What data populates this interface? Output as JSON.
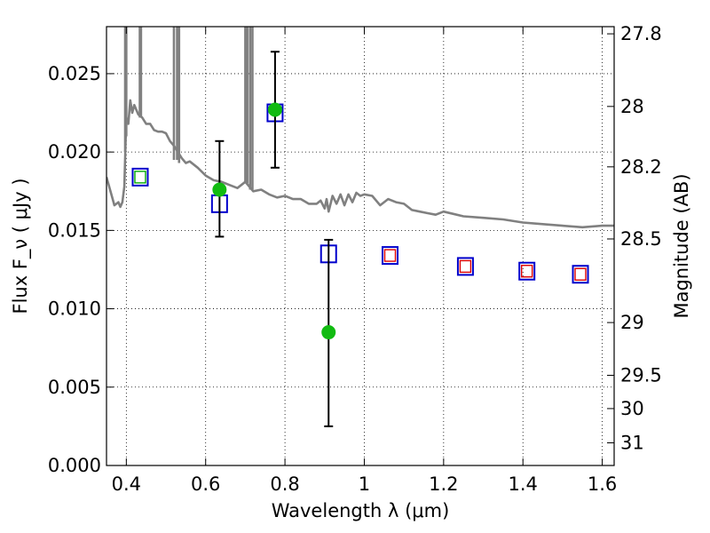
{
  "chart_data": {
    "type": "scatter",
    "xlabel": "Wavelength  λ (μm)",
    "ylabel": "Flux  F_ν  ( μJy )",
    "ylabel_right": "Magnitude (AB)",
    "xlim": [
      0.35,
      1.63
    ],
    "ylim": [
      0.0,
      0.028
    ],
    "grid": true,
    "x_ticks": [
      {
        "v": 0.4,
        "label": "0.4"
      },
      {
        "v": 0.6,
        "label": "0.6"
      },
      {
        "v": 0.8,
        "label": "0.8"
      },
      {
        "v": 1.0,
        "label": "1"
      },
      {
        "v": 1.2,
        "label": "1.2"
      },
      {
        "v": 1.4,
        "label": "1.4"
      },
      {
        "v": 1.6,
        "label": "1.6"
      }
    ],
    "y_ticks": [
      {
        "v": 0.0,
        "label": "0.000"
      },
      {
        "v": 0.005,
        "label": "0.005"
      },
      {
        "v": 0.01,
        "label": "0.010"
      },
      {
        "v": 0.015,
        "label": "0.015"
      },
      {
        "v": 0.02,
        "label": "0.020"
      },
      {
        "v": 0.025,
        "label": "0.025"
      }
    ],
    "right_ticks": [
      {
        "mag": 27.8,
        "label": "27.8"
      },
      {
        "mag": 28.0,
        "label": "28"
      },
      {
        "mag": 28.2,
        "label": "28.2"
      },
      {
        "mag": 28.5,
        "label": "28.5"
      },
      {
        "mag": 29.0,
        "label": "29"
      },
      {
        "mag": 29.5,
        "label": "29.5"
      },
      {
        "mag": 30.0,
        "label": "30"
      },
      {
        "mag": 31.0,
        "label": "31"
      }
    ],
    "series": [
      {
        "marker": "open-square",
        "color": "#0000cc",
        "x": [
          0.435,
          0.635,
          0.775,
          0.91,
          1.065,
          1.255,
          1.41,
          1.545
        ],
        "y": [
          0.0184,
          0.0167,
          0.0225,
          0.0135,
          0.0134,
          0.0127,
          0.0124,
          0.0122
        ]
      },
      {
        "marker": "small-open-square",
        "color": "#dd0000",
        "x": [
          1.065,
          1.255,
          1.41,
          1.545
        ],
        "y": [
          0.0134,
          0.0127,
          0.0124,
          0.0122
        ]
      },
      {
        "marker": "small-open-square",
        "color": "#00aa00",
        "x": [
          0.435
        ],
        "y": [
          0.0184
        ]
      },
      {
        "marker": "filled-circle",
        "color": "#11bb11",
        "x": [
          0.635,
          0.775,
          0.91
        ],
        "y": [
          0.0176,
          0.0227,
          0.0085
        ],
        "yerr_low": [
          0.0146,
          0.019,
          0.0025
        ],
        "yerr_high": [
          0.0207,
          0.0264,
          0.0144
        ]
      }
    ],
    "model_spectrum": {
      "color": "#808080",
      "x": [
        0.35,
        0.36,
        0.37,
        0.38,
        0.385,
        0.39,
        0.395,
        0.4,
        0.405,
        0.41,
        0.415,
        0.42,
        0.43,
        0.44,
        0.45,
        0.46,
        0.47,
        0.48,
        0.49,
        0.5,
        0.51,
        0.52,
        0.53,
        0.54,
        0.55,
        0.56,
        0.58,
        0.6,
        0.62,
        0.64,
        0.66,
        0.68,
        0.7,
        0.72,
        0.74,
        0.76,
        0.78,
        0.8,
        0.82,
        0.84,
        0.86,
        0.88,
        0.89,
        0.9,
        0.905,
        0.91,
        0.92,
        0.93,
        0.94,
        0.95,
        0.96,
        0.97,
        0.98,
        0.99,
        1.0,
        1.02,
        1.04,
        1.06,
        1.08,
        1.1,
        1.12,
        1.14,
        1.16,
        1.18,
        1.2,
        1.25,
        1.3,
        1.35,
        1.4,
        1.45,
        1.5,
        1.55,
        1.6,
        1.63
      ],
      "y": [
        0.0184,
        0.0175,
        0.0166,
        0.0168,
        0.0165,
        0.0168,
        0.0178,
        0.0222,
        0.0218,
        0.0233,
        0.0225,
        0.023,
        0.0224,
        0.0222,
        0.0218,
        0.0218,
        0.0214,
        0.0213,
        0.0213,
        0.0212,
        0.0207,
        0.0204,
        0.02,
        0.0196,
        0.0193,
        0.0194,
        0.019,
        0.0185,
        0.0182,
        0.0181,
        0.0179,
        0.0177,
        0.0181,
        0.0175,
        0.0176,
        0.0173,
        0.0171,
        0.0172,
        0.017,
        0.017,
        0.0167,
        0.0167,
        0.0169,
        0.0164,
        0.017,
        0.0162,
        0.0172,
        0.0167,
        0.0173,
        0.0166,
        0.0173,
        0.0168,
        0.0174,
        0.0172,
        0.0173,
        0.0172,
        0.0166,
        0.017,
        0.0168,
        0.0167,
        0.0163,
        0.0162,
        0.0161,
        0.016,
        0.0162,
        0.0159,
        0.0158,
        0.0157,
        0.0155,
        0.0154,
        0.0153,
        0.0152,
        0.0153,
        0.0153
      ],
      "spikes": [
        {
          "x": 0.397,
          "y_top": 0.028,
          "y_bottom": 0.02
        },
        {
          "x": 0.4,
          "y_top": 0.028,
          "y_bottom": 0.021
        },
        {
          "x": 0.434,
          "y_top": 0.028,
          "y_bottom": 0.0222
        },
        {
          "x": 0.437,
          "y_top": 0.028,
          "y_bottom": 0.0222
        },
        {
          "x": 0.52,
          "y_top": 0.028,
          "y_bottom": 0.0195
        },
        {
          "x": 0.528,
          "y_top": 0.028,
          "y_bottom": 0.0195
        },
        {
          "x": 0.533,
          "y_top": 0.028,
          "y_bottom": 0.0193
        },
        {
          "x": 0.7,
          "y_top": 0.028,
          "y_bottom": 0.018
        },
        {
          "x": 0.705,
          "y_top": 0.028,
          "y_bottom": 0.018
        },
        {
          "x": 0.712,
          "y_top": 0.028,
          "y_bottom": 0.0176
        },
        {
          "x": 0.718,
          "y_top": 0.028,
          "y_bottom": 0.0176
        }
      ]
    }
  }
}
